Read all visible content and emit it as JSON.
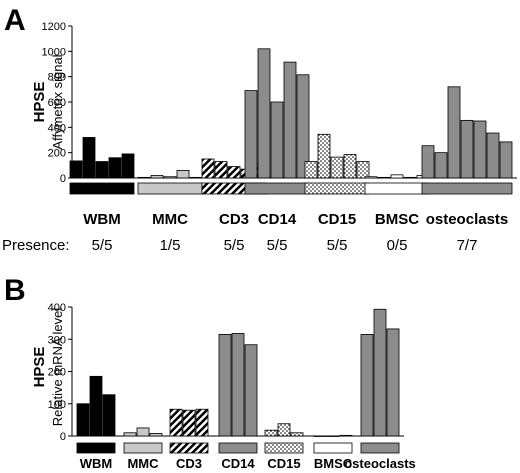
{
  "chart_data": [
    {
      "panel": "A",
      "type": "bar",
      "gene": "HPSE",
      "ylabel": "Affymetrix signal",
      "ylim": [
        0,
        1200
      ],
      "yticks": [
        0,
        200,
        400,
        600,
        800,
        1000,
        1200
      ],
      "presence_label": "Presence:",
      "groups": [
        {
          "name": "WBM",
          "presence": "5/5",
          "values": [
            135,
            320,
            130,
            160,
            190
          ]
        },
        {
          "name": "MMC",
          "presence": "1/5",
          "values": [
            5,
            20,
            10,
            60,
            5
          ]
        },
        {
          "name": "CD3",
          "presence": "5/5",
          "values": [
            150,
            130,
            90,
            70,
            110
          ]
        },
        {
          "name": "CD14",
          "presence": "5/5",
          "values": [
            690,
            1020,
            600,
            915,
            815
          ]
        },
        {
          "name": "CD15",
          "presence": "5/5",
          "values": [
            130,
            345,
            165,
            185,
            130
          ]
        },
        {
          "name": "BMSC",
          "presence": "0/5",
          "values": [
            10,
            5,
            25,
            5,
            20
          ]
        },
        {
          "name": "osteoclasts",
          "presence": "7/7",
          "values": [
            255,
            200,
            720,
            455,
            450,
            355,
            285
          ]
        }
      ]
    },
    {
      "panel": "B",
      "type": "bar",
      "gene": "HPSE",
      "ylabel": "Relative mRNA level",
      "ylim": [
        0,
        400
      ],
      "yticks": [
        0,
        100,
        200,
        300,
        400
      ],
      "groups": [
        {
          "name": "WBM",
          "values": [
            100,
            185,
            128
          ]
        },
        {
          "name": "MMC",
          "values": [
            10,
            25,
            8
          ]
        },
        {
          "name": "CD3",
          "values": [
            83,
            80,
            83
          ]
        },
        {
          "name": "CD14",
          "values": [
            315,
            318,
            283
          ]
        },
        {
          "name": "CD15",
          "values": [
            18,
            38,
            10
          ]
        },
        {
          "name": "BMSC",
          "values": [
            0,
            0,
            2
          ]
        },
        {
          "name": "osteoclasts",
          "values": [
            315,
            393,
            332
          ]
        }
      ]
    }
  ],
  "style": {
    "group_colors": {
      "WBM": "#000000",
      "MMC": "#c8c8c8",
      "CD3": "pattern-diagonal",
      "CD14": "#8c8c8c",
      "CD15": "pattern-dots",
      "BMSC": "#ffffff",
      "osteoclasts": "#8c8c8c"
    }
  }
}
